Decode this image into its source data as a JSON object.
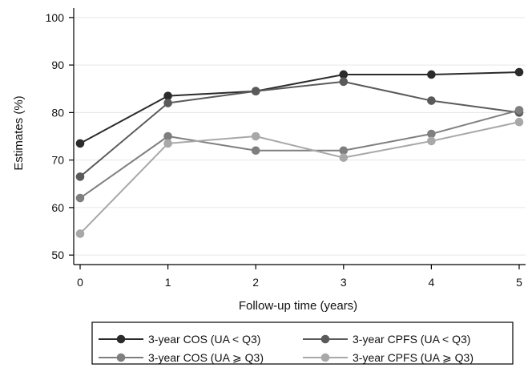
{
  "chart_data": {
    "type": "line",
    "title": "",
    "xlabel": "Follow-up time (years)",
    "ylabel": "Estimates (%)",
    "x": [
      0,
      1,
      2,
      3,
      4,
      5
    ],
    "xlim": [
      0,
      5
    ],
    "ylim": [
      48,
      102
    ],
    "x_ticks": [
      0,
      1,
      2,
      3,
      4,
      5
    ],
    "y_ticks": [
      50,
      60,
      70,
      80,
      90,
      100
    ],
    "grid": "horizontal",
    "legend_position": "bottom",
    "series": [
      {
        "name": "3-year COS (UA < Q3)",
        "values": [
          73.5,
          83.5,
          84.5,
          88.0,
          88.0,
          88.5
        ],
        "color": "#2b2b2b"
      },
      {
        "name": "3-year CPFS (UA < Q3)",
        "values": [
          66.5,
          82.0,
          84.5,
          86.5,
          82.5,
          80.0
        ],
        "color": "#5a5a5a"
      },
      {
        "name": "3-year COS (UA ⩾ Q3)",
        "values": [
          62.0,
          75.0,
          72.0,
          72.0,
          75.5,
          80.5
        ],
        "color": "#7f7f7f"
      },
      {
        "name": "3-year CPFS (UA ⩾ Q3)",
        "values": [
          54.5,
          73.5,
          75.0,
          70.5,
          74.0,
          78.0
        ],
        "color": "#a8a8a8"
      }
    ]
  }
}
